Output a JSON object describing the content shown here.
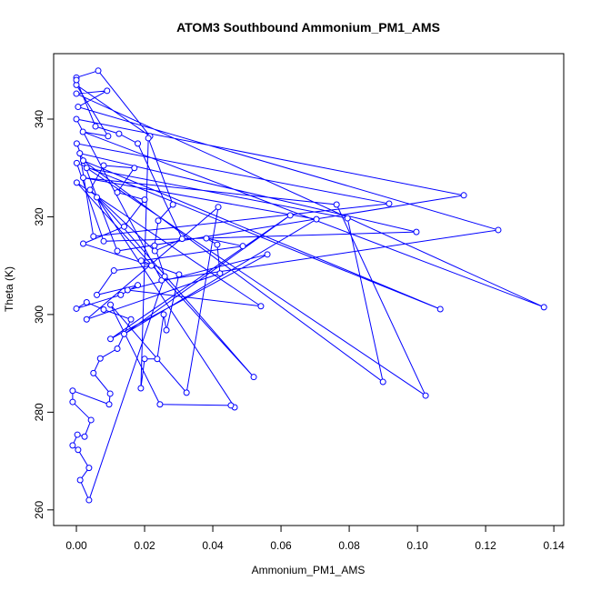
{
  "chart_data": {
    "type": "line",
    "title": "ATOM3 Southbound Ammonium_PM1_AMS",
    "x_label": "Ammonium_PM1_AMS",
    "y_label": "Theta (K)",
    "xlim": [
      -0.00667,
      0.1429
    ],
    "ylim": [
      256.8,
      353.4
    ],
    "xticks": [
      {
        "value": 0,
        "label": "0.00"
      },
      {
        "value": 0.02,
        "label": "0.02"
      },
      {
        "value": 0.04,
        "label": "0.04"
      },
      {
        "value": 0.06,
        "label": "0.06"
      },
      {
        "value": 0.08,
        "label": "0.08"
      },
      {
        "value": 0.1,
        "label": "0.10"
      },
      {
        "value": 0.12,
        "label": "0.12"
      },
      {
        "value": 0.14,
        "label": "0.14"
      }
    ],
    "yticks": [
      260,
      280,
      300,
      320,
      340
    ],
    "color": "#0000ff",
    "x": [
      0.0,
      0.0064,
      0.0216,
      0.0,
      0.0093,
      0.0019,
      0.1371,
      0.0,
      0.009,
      0.0005,
      0.1237,
      0.025,
      0.0,
      0.1136,
      0.012,
      0.0001,
      0.0917,
      0.005,
      0.001,
      0.0997,
      0.008,
      0.0001,
      0.1067,
      0.002,
      0.0899,
      0.0795,
      0.003,
      0.1024,
      0.0763,
      0.002,
      0.0704,
      0.014,
      0.0627,
      0.01,
      0.056,
      0.015,
      0.0541,
      0.0001,
      0.052,
      0.006,
      0.0464,
      0.0453,
      0.0245,
      0.01,
      0.0323,
      0.0416,
      0.003,
      0.0421,
      0.0413,
      0.0381,
      0.0488,
      0.019,
      0.0301,
      0.0264,
      0.0256,
      0.0237,
      0.02,
      0.0189,
      0.0211,
      0.0283,
      0.024,
      0.0229,
      0.0259,
      0.0037,
      0.0011,
      0.0037,
      0.0005,
      -0.0011,
      0.0003,
      0.0024,
      0.0043,
      -0.0011,
      -0.0011,
      0.0096,
      0.0099,
      0.005,
      0.007,
      0.012,
      0.016,
      0.008,
      0.003,
      0.0,
      0.013,
      0.018,
      0.006,
      0.011,
      0.022,
      0.002,
      0.014,
      0.02,
      0.012,
      0.017,
      0.008,
      0.004,
      0.023,
      0.031,
      0.018,
      0.0125,
      0.0056,
      0.0
    ],
    "values": [
      348.5,
      349.9,
      336.5,
      347.0,
      336.5,
      337.4,
      301.5,
      345.2,
      345.8,
      342.5,
      317.3,
      307.0,
      340.0,
      324.4,
      313.0,
      335.0,
      322.7,
      316.0,
      333.0,
      316.9,
      315.0,
      331.0,
      301.1,
      331.5,
      286.2,
      319.7,
      330.0,
      283.4,
      322.5,
      328.0,
      319.5,
      296.0,
      320.3,
      295.0,
      312.3,
      305.0,
      301.7,
      327.0,
      287.2,
      324.0,
      281.0,
      281.4,
      281.6,
      302.0,
      284.0,
      322.0,
      299.0,
      308.4,
      314.3,
      315.6,
      314.0,
      311.0,
      308.2,
      296.8,
      300.0,
      290.9,
      290.9,
      284.9,
      336.1,
      322.5,
      319.2,
      314.1,
      307.8,
      262.0,
      266.1,
      268.6,
      272.3,
      273.2,
      275.4,
      275.0,
      278.4,
      282.1,
      284.4,
      281.6,
      283.8,
      288.0,
      291.0,
      293.0,
      299.0,
      301.0,
      302.5,
      301.2,
      304.0,
      306.0,
      304.0,
      309.0,
      310.0,
      314.5,
      318.0,
      323.5,
      325.0,
      330.0,
      330.5,
      325.5,
      313.0,
      315.5,
      335.0,
      337.0,
      338.5,
      348.0
    ]
  }
}
